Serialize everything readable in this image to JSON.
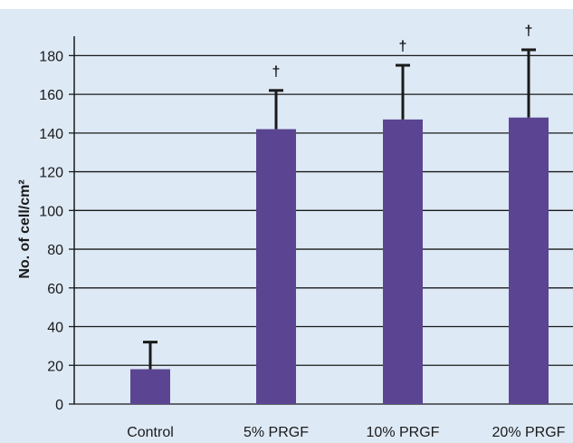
{
  "chart_data": {
    "type": "bar",
    "categories": [
      "Control",
      "5% PRGF",
      "10% PRGF",
      "20% PRGF"
    ],
    "values": [
      18,
      142,
      147,
      148
    ],
    "errors": [
      14,
      20,
      28,
      35
    ],
    "annotations": [
      "",
      "†",
      "†",
      "†"
    ],
    "xlabel": "",
    "ylabel": "No. of cell/cm²",
    "ylim": [
      0,
      190
    ],
    "yticks": [
      0,
      20,
      40,
      60,
      80,
      100,
      120,
      140,
      160,
      180
    ],
    "grid": true,
    "colors": {
      "background": "#dde9f5",
      "bar": "#5b4593",
      "grid": "#1a1a1a",
      "error_bar": "#1a1a1a"
    }
  }
}
